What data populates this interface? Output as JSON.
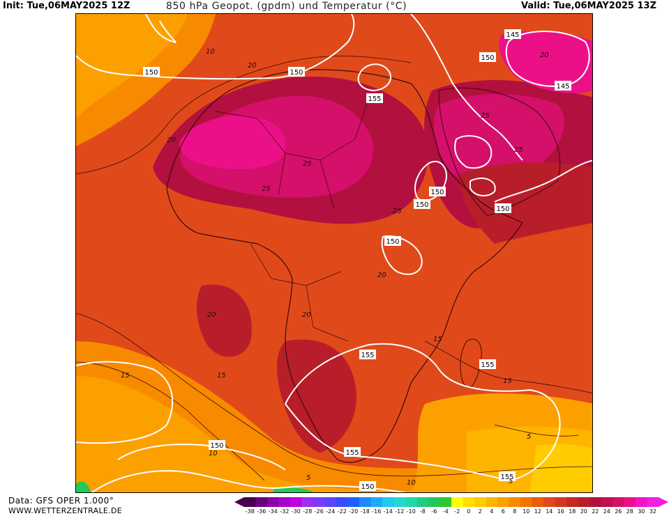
{
  "header": {
    "init_label": "Init: Tue,06MAY2025 12Z",
    "title": "850 hPa Geopot. (gpdm) und Temperatur (°C)",
    "valid_label": "Valid: Tue,06MAY2025 13Z"
  },
  "footer": {
    "data_source": "Data: GFS OPER 1.000°",
    "website": "WWW.WETTERZENTRALE.DE"
  },
  "colorbar": {
    "labels": [
      "-38",
      "-36",
      "-34",
      "-32",
      "-30",
      "-28",
      "-26",
      "-24",
      "-22",
      "-20",
      "-18",
      "-16",
      "-14",
      "-12",
      "-10",
      "-8",
      "-6",
      "-4",
      "-2",
      "0",
      "2",
      "4",
      "6",
      "8",
      "10",
      "12",
      "14",
      "16",
      "18",
      "20",
      "22",
      "24",
      "26",
      "28",
      "30",
      "32"
    ],
    "colors": [
      "#4a0050",
      "#6a0080",
      "#8c00a8",
      "#a800c8",
      "#c000e0",
      "#9a30f0",
      "#7a3cf6",
      "#5a46f8",
      "#3a4cfa",
      "#2060fa",
      "#1e88fc",
      "#20aafc",
      "#22c8f0",
      "#22d8d0",
      "#20d8a8",
      "#20cc80",
      "#22c858",
      "#30c830",
      "#ffff00",
      "#ffe000",
      "#ffcc00",
      "#ffb400",
      "#fca000",
      "#f88a00",
      "#f07400",
      "#e85c0a",
      "#e04a1a",
      "#d4381e",
      "#c42a20",
      "#b81e2a",
      "#b2103e",
      "#c0104e",
      "#d4106a",
      "#ec1088",
      "#f014c8",
      "#f020e0"
    ]
  },
  "map": {
    "field": "850 hPa temperature",
    "geopotential_labels": [
      "150",
      "150",
      "150",
      "155",
      "145",
      "150",
      "145",
      "150",
      "150",
      "150",
      "150",
      "155",
      "155",
      "150",
      "155",
      "150",
      "155"
    ],
    "temperature_labels": [
      "10",
      "20",
      "20",
      "25",
      "25",
      "25",
      "25",
      "25",
      "20",
      "20",
      "20",
      "15",
      "15",
      "15",
      "15",
      "10",
      "5",
      "10",
      "5",
      "5",
      "20"
    ]
  }
}
